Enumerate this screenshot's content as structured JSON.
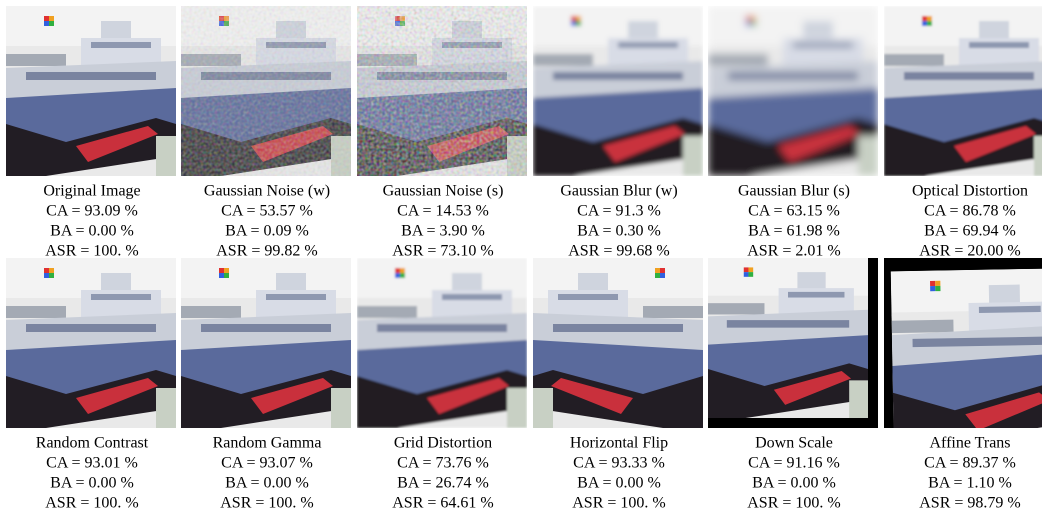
{
  "panels": [
    {
      "name": "Original Image",
      "ca": "CA = 93.09 %",
      "ba": "BA = 0.00 %",
      "asr": "ASR = 100. %"
    },
    {
      "name": "Gaussian Noise (w)",
      "ca": "CA = 53.57 %",
      "ba": "BA = 0.09 %",
      "asr": "ASR = 99.82 %"
    },
    {
      "name": "Gaussian Noise (s)",
      "ca": "CA = 14.53 %",
      "ba": "BA = 3.90 %",
      "asr": "ASR = 73.10 %"
    },
    {
      "name": "Gaussian Blur (w)",
      "ca": "CA = 91.3 %",
      "ba": "BA = 0.30 %",
      "asr": "ASR = 99.68 %"
    },
    {
      "name": "Gaussian Blur (s)",
      "ca": "CA = 63.15 %",
      "ba": "BA = 61.98 %",
      "asr": "ASR = 2.01 %"
    },
    {
      "name": "Optical Distortion",
      "ca": "CA = 86.78 %",
      "ba": "BA = 69.94 %",
      "asr": "ASR = 20.00 %"
    },
    {
      "name": "Random Contrast",
      "ca": "CA = 93.01 %",
      "ba": "BA = 0.00 %",
      "asr": "ASR = 100. %"
    },
    {
      "name": "Random Gamma",
      "ca": "CA = 93.07 %",
      "ba": "BA = 0.00 %",
      "asr": "ASR = 100. %"
    },
    {
      "name": "Grid Distortion",
      "ca": "CA = 73.76 %",
      "ba": "BA = 26.74 %",
      "asr": "ASR = 64.61 %"
    },
    {
      "name": "Horizontal Flip",
      "ca": "CA = 93.33 %",
      "ba": "BA = 0.00 %",
      "asr": "ASR = 100. %"
    },
    {
      "name": "Down Scale",
      "ca": "CA = 91.16 %",
      "ba": "BA = 0.00 %",
      "asr": "ASR = 100. %"
    },
    {
      "name": "Affine Trans",
      "ca": "CA = 89.37 %",
      "ba": "BA = 1.10 %",
      "asr": "ASR = 98.79 %"
    }
  ]
}
